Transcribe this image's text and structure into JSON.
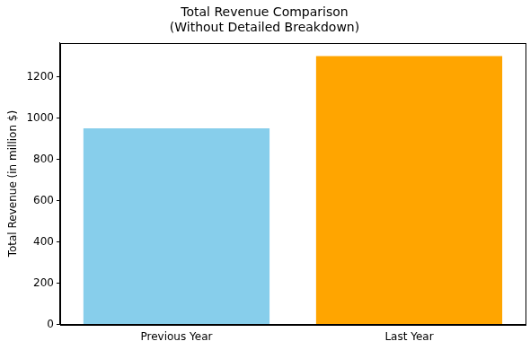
{
  "chart_data": {
    "type": "bar",
    "title": "Total Revenue Comparison",
    "subtitle": "(Without Detailed Breakdown)",
    "y_label": "Total Revenue (in million $)",
    "categories": [
      "Previous Year",
      "Last Year"
    ],
    "values": [
      950,
      1300
    ],
    "colors": [
      "#87ceeb",
      "#ffa500"
    ],
    "ylim": [
      0,
      1365
    ],
    "yticks": [
      0,
      200,
      400,
      600,
      800,
      1000,
      1200
    ],
    "grid": false
  }
}
